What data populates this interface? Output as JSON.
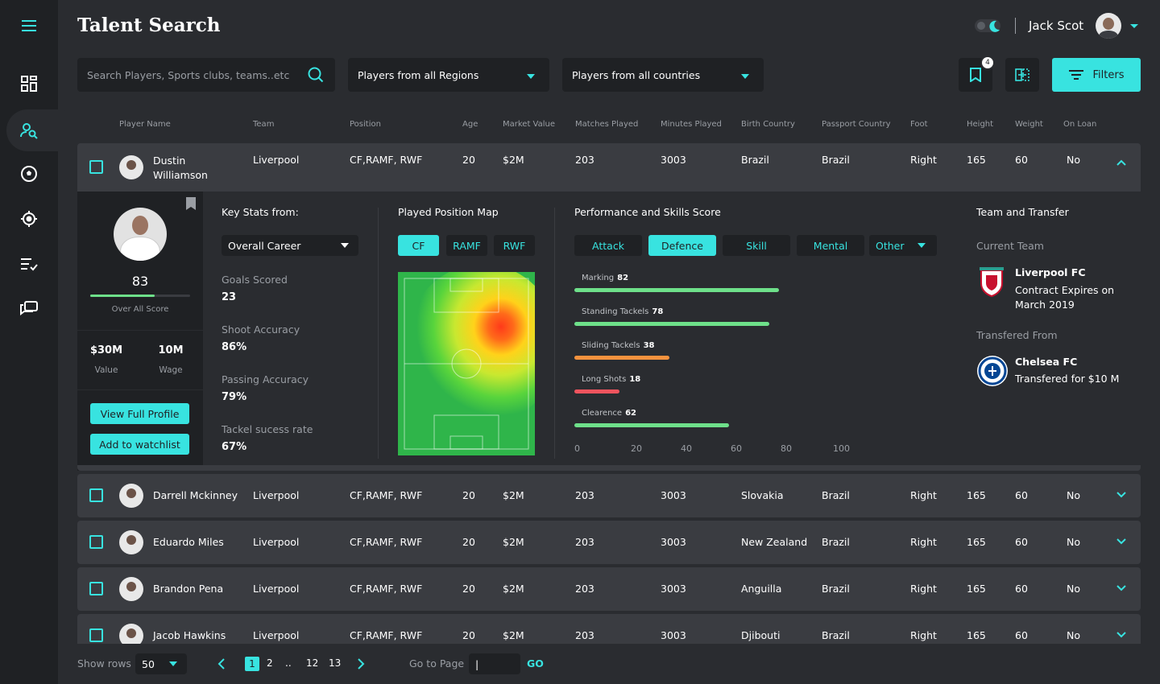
{
  "page": {
    "title": "Talent Search"
  },
  "user": {
    "name": "Jack Scot"
  },
  "search": {
    "placeholder": "Search Players, Sports clubs, teams..etc"
  },
  "filters": {
    "regions": "Players from all Regions",
    "countries": "Players from all countries",
    "bookmark_count": "4",
    "button": "Filters"
  },
  "table": {
    "headers": [
      "Player Name",
      "Team",
      "Position",
      "Age",
      "Market Value",
      "Matches Played",
      "Minutes Played",
      "Birth Country",
      "Passport Country",
      "Foot",
      "Height",
      "Weight",
      "On Loan"
    ],
    "rows": [
      {
        "name": "Dustin Williamson",
        "team": "Liverpool",
        "position": "CF,RAMF, RWF",
        "age": "20",
        "value": "$2M",
        "matches": "203",
        "minutes": "3003",
        "birth": "Brazil",
        "passport": "Brazil",
        "foot": "Right",
        "height": "165",
        "weight": "60",
        "loan": "No"
      },
      {
        "name": "Darrell Mckinney",
        "team": "Liverpool",
        "position": "CF,RAMF, RWF",
        "age": "20",
        "value": "$2M",
        "matches": "203",
        "minutes": "3003",
        "birth": "Slovakia",
        "passport": "Brazil",
        "foot": "Right",
        "height": "165",
        "weight": "60",
        "loan": "No"
      },
      {
        "name": "Eduardo Miles",
        "team": "Liverpool",
        "position": "CF,RAMF, RWF",
        "age": "20",
        "value": "$2M",
        "matches": "203",
        "minutes": "3003",
        "birth": "New Zealand",
        "passport": "Brazil",
        "foot": "Right",
        "height": "165",
        "weight": "60",
        "loan": "No"
      },
      {
        "name": "Brandon Pena",
        "team": "Liverpool",
        "position": "CF,RAMF, RWF",
        "age": "20",
        "value": "$2M",
        "matches": "203",
        "minutes": "3003",
        "birth": "Anguilla",
        "passport": "Brazil",
        "foot": "Right",
        "height": "165",
        "weight": "60",
        "loan": "No"
      },
      {
        "name": "Jacob Hawkins",
        "team": "Liverpool",
        "position": "CF,RAMF, RWF",
        "age": "20",
        "value": "$2M",
        "matches": "203",
        "minutes": "3003",
        "birth": "Djibouti",
        "passport": "Brazil",
        "foot": "Right",
        "height": "165",
        "weight": "60",
        "loan": "No"
      }
    ]
  },
  "detail": {
    "overall_score": "83",
    "overall_score_fraction": 0.83,
    "overall_label": "Over All Score",
    "market_value": "$30M",
    "market_value_label": "Value",
    "wage": "10M",
    "wage_label": "Wage",
    "view_profile": "View Full Profile",
    "add_watchlist": "Add to watchlist",
    "key_stats_title": "Key Stats from:",
    "key_stats_select": "Overall Career",
    "stats": [
      {
        "label": "Goals Scored",
        "value": "23"
      },
      {
        "label": "Shoot Accuracy",
        "value": "86%"
      },
      {
        "label": "Passing Accuracy",
        "value": "79%"
      },
      {
        "label": "Tackel sucess rate",
        "value": "67%"
      }
    ],
    "position_map_title": "Played Position Map",
    "positions": [
      "CF",
      "RAMF",
      "RWF"
    ],
    "performance_title": "Performance and Skills Score",
    "skill_tabs": [
      "Attack",
      "Defence",
      "Skill",
      "Mental",
      "Other"
    ],
    "skills": [
      {
        "name": "Marking",
        "value": 82,
        "color": "#6ee08a"
      },
      {
        "name": "Standing Tackels",
        "value": 78,
        "color": "#6ee08a"
      },
      {
        "name": "Sliding Tackels",
        "value": 38,
        "color": "#f5923e"
      },
      {
        "name": "Long Shots",
        "value": 18,
        "color": "#f0545e"
      },
      {
        "name": "Clearence",
        "value": 62,
        "color": "#6ee08a"
      }
    ],
    "axis_ticks": [
      "0",
      "20",
      "40",
      "60",
      "80",
      "100"
    ],
    "transfer_title": "Team and Transfer",
    "current_team_label": "Current Team",
    "current_team": "Liverpool FC",
    "contract": "Contract Expires on March 2019",
    "transferred_from_label": "Transfered From",
    "previous_team": "Chelsea FC",
    "transfer_fee": "Transfered for $10 M"
  },
  "pagination": {
    "show_rows_label": "Show rows",
    "rows_value": "50",
    "pages": [
      "1",
      "2",
      "..",
      "12",
      "13"
    ],
    "goto_label": "Go to Page",
    "goto_value": "|",
    "go_button": "GO"
  },
  "colors": {
    "accent": "#38e3e0",
    "panel": "#1f2124",
    "row": "#3a3c41",
    "background": "#2a2c30"
  }
}
